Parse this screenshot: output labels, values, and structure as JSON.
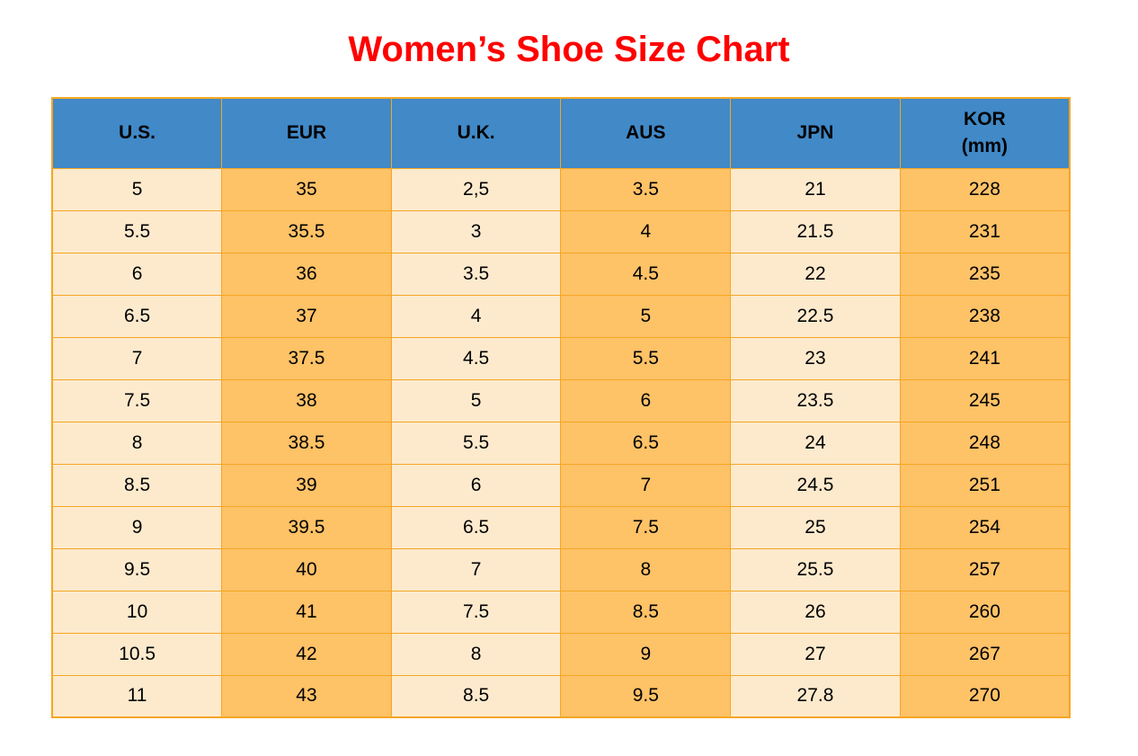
{
  "title": "Women’s Shoe Size Chart",
  "colors": {
    "title_red": "#ff0000",
    "header_blue": "#4189c7",
    "cell_cream": "#fdeacd",
    "cell_orange": "#fec267",
    "border_orange": "#f5a623",
    "text_black": "#000000"
  },
  "chart_data": {
    "type": "table",
    "title": "Women’s Shoe Size Chart",
    "columns": [
      "U.S.",
      "EUR",
      "U.K.",
      "AUS",
      "JPN",
      "KOR (mm)"
    ],
    "header_display": [
      "U.S.",
      "EUR",
      "U.K.",
      "AUS",
      "JPN",
      "KOR\n(mm)"
    ],
    "rows": [
      [
        "5",
        "35",
        "2,5",
        "3.5",
        "21",
        "228"
      ],
      [
        "5.5",
        "35.5",
        "3",
        "4",
        "21.5",
        "231"
      ],
      [
        "6",
        "36",
        "3.5",
        "4.5",
        "22",
        "235"
      ],
      [
        "6.5",
        "37",
        "4",
        "5",
        "22.5",
        "238"
      ],
      [
        "7",
        "37.5",
        "4.5",
        "5.5",
        "23",
        "241"
      ],
      [
        "7.5",
        "38",
        "5",
        "6",
        "23.5",
        "245"
      ],
      [
        "8",
        "38.5",
        "5.5",
        "6.5",
        "24",
        "248"
      ],
      [
        "8.5",
        "39",
        "6",
        "7",
        "24.5",
        "251"
      ],
      [
        "9",
        "39.5",
        "6.5",
        "7.5",
        "25",
        "254"
      ],
      [
        "9.5",
        "40",
        "7",
        "8",
        "25.5",
        "257"
      ],
      [
        "10",
        "41",
        "7.5",
        "8.5",
        "26",
        "260"
      ],
      [
        "10.5",
        "42",
        "8",
        "9",
        "27",
        "267"
      ],
      [
        "11",
        "43",
        "8.5",
        "9.5",
        "27.8",
        "270"
      ]
    ]
  }
}
